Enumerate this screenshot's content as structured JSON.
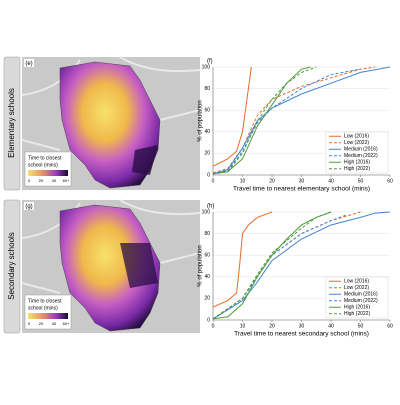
{
  "rows": [
    "Elementary schools",
    "Secondary schools"
  ],
  "maps": [
    {
      "label": "(e)",
      "legend_title": [
        "Time to closest",
        "school (mins)"
      ],
      "ticks": [
        "0",
        "20",
        "40",
        "60+"
      ]
    },
    {
      "label": "(g)",
      "legend_title": [
        "Time to closest",
        "school (mins)"
      ],
      "ticks": [
        "0",
        "20",
        "40",
        "60+"
      ]
    }
  ],
  "chart_data": [
    {
      "type": "line",
      "label": "(f)",
      "xlabel": "Travel time to nearest elementary school (mins)",
      "ylabel": "% of population",
      "xlim": [
        0,
        60
      ],
      "xticks": [
        0,
        10,
        20,
        30,
        40,
        50,
        60
      ],
      "ylim": [
        0,
        100
      ],
      "yticks": [
        0,
        20,
        40,
        60,
        80,
        100
      ],
      "legend": "lower right",
      "series": [
        {
          "name": "Low (2016)",
          "color": "#e8692a",
          "style": "solid",
          "x": [
            0,
            5,
            8,
            10,
            11,
            12,
            13
          ],
          "values": [
            8,
            15,
            22,
            40,
            60,
            80,
            100
          ]
        },
        {
          "name": "Low (2022)",
          "color": "#e8692a",
          "style": "dashed",
          "x": [
            0,
            5,
            10,
            15,
            20,
            30,
            40,
            50,
            55
          ],
          "values": [
            2,
            6,
            25,
            55,
            70,
            82,
            90,
            98,
            100
          ]
        },
        {
          "name": "Medium (2016)",
          "color": "#3d85d6",
          "style": "solid",
          "x": [
            0,
            5,
            10,
            15,
            20,
            30,
            40,
            50,
            60
          ],
          "values": [
            1,
            5,
            25,
            50,
            62,
            75,
            85,
            95,
            100
          ]
        },
        {
          "name": "Medium (2022)",
          "color": "#3d85d6",
          "style": "dashed",
          "x": [
            0,
            5,
            10,
            15,
            20,
            30,
            40,
            50
          ],
          "values": [
            1,
            4,
            22,
            48,
            62,
            80,
            93,
            98
          ]
        },
        {
          "name": "High (2016)",
          "color": "#4f9a3a",
          "style": "solid",
          "x": [
            0,
            5,
            10,
            15,
            20,
            25,
            30,
            33
          ],
          "values": [
            1,
            3,
            15,
            45,
            65,
            85,
            98,
            100
          ]
        },
        {
          "name": "High (2022)",
          "color": "#4f9a3a",
          "style": "dashed",
          "x": [
            0,
            5,
            10,
            15,
            20,
            25,
            30,
            35
          ],
          "values": [
            1,
            3,
            20,
            50,
            70,
            85,
            95,
            100
          ]
        }
      ]
    },
    {
      "type": "line",
      "label": "(h)",
      "xlabel": "Travel time to nearest secondary school (mins)",
      "ylabel": "% of population",
      "xlim": [
        0,
        60
      ],
      "xticks": [
        0,
        10,
        20,
        30,
        40,
        50,
        60
      ],
      "ylim": [
        0,
        100
      ],
      "yticks": [
        0,
        20,
        40,
        60,
        80,
        100
      ],
      "legend": "lower right",
      "series": [
        {
          "name": "Low (2016)",
          "color": "#e8692a",
          "style": "solid",
          "x": [
            0,
            5,
            8,
            9,
            10,
            12,
            15,
            20
          ],
          "values": [
            12,
            18,
            25,
            50,
            80,
            88,
            95,
            100
          ]
        },
        {
          "name": "Low (2022)",
          "color": "#e8692a",
          "style": "dashed",
          "x": [
            0,
            10,
            15,
            20,
            30,
            40,
            50
          ],
          "values": [
            1,
            20,
            40,
            60,
            80,
            92,
            100
          ]
        },
        {
          "name": "Medium (2016)",
          "color": "#3d85d6",
          "style": "solid",
          "x": [
            0,
            10,
            15,
            20,
            30,
            40,
            50,
            55,
            60
          ],
          "values": [
            1,
            18,
            35,
            55,
            75,
            88,
            95,
            99,
            100
          ]
        },
        {
          "name": "Medium (2022)",
          "color": "#3d85d6",
          "style": "dashed",
          "x": [
            0,
            10,
            15,
            20,
            30,
            40,
            45
          ],
          "values": [
            1,
            20,
            40,
            60,
            80,
            92,
            97
          ]
        },
        {
          "name": "High (2016)",
          "color": "#4f9a3a",
          "style": "solid",
          "x": [
            0,
            5,
            10,
            15,
            20,
            25,
            30,
            35,
            40
          ],
          "values": [
            1,
            3,
            15,
            40,
            60,
            75,
            88,
            95,
            100
          ]
        },
        {
          "name": "High (2022)",
          "color": "#4f9a3a",
          "style": "dashed",
          "x": [
            0,
            10,
            15,
            20,
            30,
            35,
            40
          ],
          "values": [
            1,
            20,
            42,
            62,
            85,
            95,
            100
          ]
        }
      ]
    }
  ]
}
